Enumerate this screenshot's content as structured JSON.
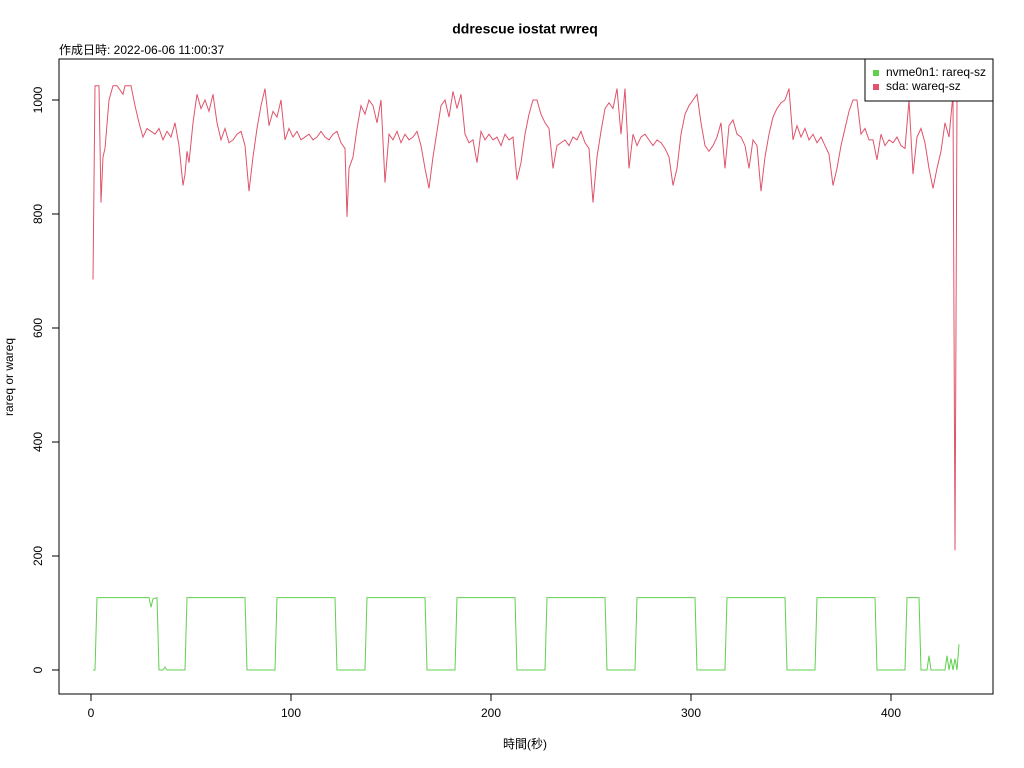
{
  "chart_data": {
    "type": "line",
    "title": "ddrescue iostat rwreq",
    "subtitle": "作成日時: 2022-06-06 11:00:37",
    "x_label": "時間(秒)",
    "y_label": "rareq or wareq",
    "xlim": [
      -16,
      451
    ],
    "ylim": [
      -42.1,
      1071.9
    ],
    "xticks": [
      0,
      100,
      200,
      300,
      400
    ],
    "yticks": [
      0,
      200,
      400,
      600,
      800,
      1000
    ],
    "legend": "top-right",
    "series": [
      {
        "name": "nvme0n1: rareq-sz",
        "color": "#61D04F",
        "x": [
          1,
          2,
          3,
          29,
          30,
          31,
          33,
          34,
          36,
          37,
          38,
          47,
          48,
          77,
          78,
          92,
          93,
          122,
          123,
          137,
          138,
          167,
          168,
          182,
          183,
          212,
          213,
          227,
          228,
          257,
          258,
          272,
          273,
          302,
          303,
          317,
          318,
          347,
          348,
          362,
          363,
          392,
          393,
          407,
          408,
          414,
          415,
          418,
          419,
          420,
          427,
          428,
          429,
          430,
          431,
          432,
          433,
          434
        ],
        "values": [
          0,
          0,
          127,
          127,
          110,
          125,
          127,
          0,
          0,
          5,
          0,
          0,
          127,
          127,
          0,
          0,
          127,
          127,
          0,
          0,
          127,
          127,
          0,
          0,
          127,
          127,
          0,
          0,
          127,
          127,
          0,
          0,
          127,
          127,
          0,
          0,
          127,
          127,
          0,
          0,
          127,
          127,
          0,
          0,
          127,
          127,
          0,
          0,
          25,
          0,
          0,
          25,
          0,
          20,
          0,
          20,
          0,
          45
        ]
      },
      {
        "name": "sda: wareq-sz",
        "color": "#DF536B",
        "x": [
          1,
          2,
          4,
          5,
          6,
          7,
          9,
          11,
          13,
          16,
          17,
          20,
          22,
          24,
          26,
          28,
          30,
          32,
          34,
          36,
          38,
          40,
          42,
          44,
          46,
          47,
          48,
          49,
          51,
          53,
          55,
          57,
          59,
          61,
          63,
          65,
          67,
          69,
          71,
          73,
          75,
          77,
          79,
          81,
          83,
          85,
          87,
          89,
          91,
          93,
          95,
          97,
          99,
          101,
          103,
          105,
          107,
          109,
          111,
          113,
          115,
          117,
          119,
          121,
          123,
          125,
          127,
          128,
          129,
          131,
          133,
          135,
          137,
          139,
          141,
          143,
          145,
          147,
          149,
          151,
          153,
          155,
          157,
          159,
          161,
          163,
          165,
          167,
          169,
          171,
          173,
          175,
          177,
          179,
          181,
          183,
          185,
          187,
          189,
          191,
          193,
          195,
          197,
          199,
          201,
          203,
          205,
          207,
          209,
          211,
          213,
          215,
          217,
          219,
          221,
          223,
          225,
          227,
          229,
          231,
          233,
          235,
          237,
          239,
          241,
          243,
          245,
          247,
          249,
          251,
          253,
          255,
          257,
          259,
          261,
          263,
          265,
          267,
          269,
          271,
          273,
          275,
          277,
          279,
          281,
          283,
          285,
          287,
          289,
          291,
          293,
          295,
          297,
          299,
          301,
          303,
          305,
          307,
          309,
          311,
          313,
          315,
          317,
          319,
          321,
          323,
          325,
          327,
          329,
          331,
          333,
          335,
          337,
          339,
          341,
          343,
          345,
          347,
          349,
          351,
          353,
          355,
          357,
          359,
          361,
          363,
          365,
          367,
          369,
          371,
          373,
          375,
          377,
          379,
          381,
          383,
          385,
          387,
          389,
          391,
          393,
          395,
          397,
          399,
          401,
          403,
          405,
          407,
          409,
          411,
          413,
          415,
          417,
          419,
          421,
          423,
          425,
          427,
          429,
          431,
          432,
          433,
          434
        ],
        "values": [
          685,
          1025,
          1025,
          820,
          900,
          915,
          1000,
          1025,
          1025,
          1010,
          1025,
          1025,
          990,
          960,
          935,
          950,
          945,
          940,
          950,
          930,
          945,
          935,
          960,
          920,
          850,
          870,
          910,
          890,
          960,
          1010,
          985,
          1000,
          980,
          1010,
          960,
          930,
          950,
          925,
          930,
          940,
          945,
          920,
          840,
          900,
          950,
          990,
          1020,
          955,
          980,
          970,
          1000,
          930,
          950,
          935,
          945,
          930,
          935,
          940,
          930,
          935,
          945,
          935,
          930,
          940,
          945,
          925,
          915,
          795,
          880,
          900,
          950,
          990,
          975,
          1000,
          990,
          960,
          1000,
          855,
          940,
          930,
          945,
          925,
          940,
          930,
          935,
          945,
          920,
          880,
          845,
          900,
          945,
          990,
          1000,
          970,
          1015,
          985,
          1010,
          940,
          925,
          930,
          890,
          945,
          930,
          940,
          930,
          935,
          920,
          940,
          930,
          935,
          860,
          890,
          940,
          975,
          1000,
          1000,
          975,
          960,
          950,
          880,
          920,
          925,
          930,
          920,
          935,
          930,
          945,
          925,
          915,
          820,
          900,
          945,
          985,
          995,
          985,
          1020,
          940,
          1020,
          880,
          940,
          920,
          935,
          940,
          930,
          920,
          930,
          925,
          915,
          900,
          850,
          880,
          940,
          975,
          990,
          1000,
          1010,
          960,
          920,
          910,
          920,
          935,
          960,
          880,
          955,
          965,
          940,
          935,
          920,
          880,
          930,
          920,
          840,
          900,
          940,
          970,
          985,
          995,
          1000,
          1020,
          930,
          955,
          935,
          950,
          930,
          940,
          925,
          935,
          920,
          905,
          850,
          880,
          920,
          950,
          980,
          1000,
          1000,
          940,
          950,
          930,
          930,
          895,
          940,
          920,
          930,
          925,
          935,
          920,
          915,
          1000,
          870,
          935,
          950,
          925,
          880,
          845,
          880,
          910,
          960,
          935,
          1010,
          210,
          1000,
          1020
        ]
      }
    ]
  }
}
